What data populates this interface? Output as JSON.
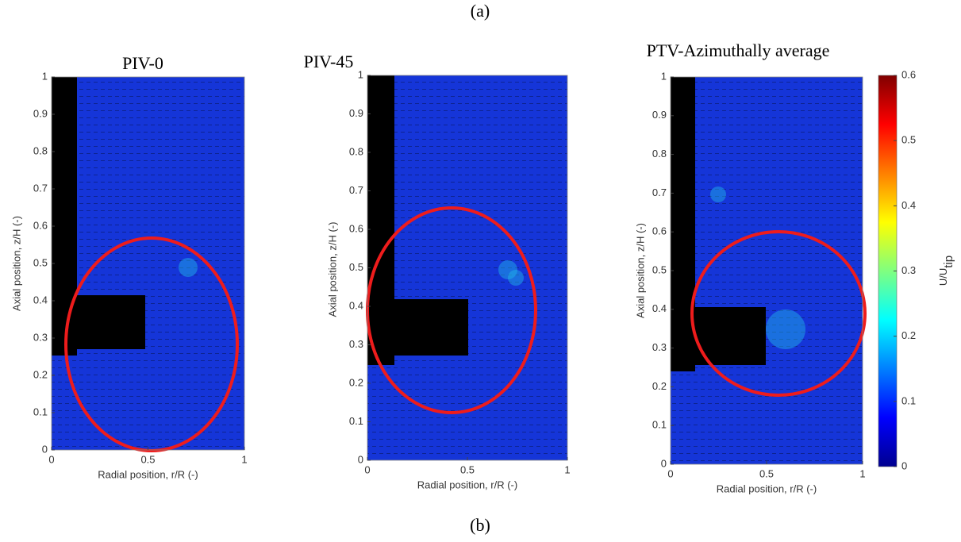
{
  "captions": {
    "top": "(a)",
    "bottom": "(b)"
  },
  "chart_data": [
    {
      "type": "vector-field",
      "title": "PIV-0",
      "x_label": "Radial position, r/R (-)",
      "y_label": "Axial position, z/H (-)",
      "xlim": [
        0,
        1
      ],
      "ylim": [
        0,
        1
      ],
      "xticks": [
        0,
        0.5,
        1
      ],
      "yticks": [
        0,
        0.1,
        0.2,
        0.3,
        0.4,
        0.5,
        0.6,
        0.7,
        0.8,
        0.9,
        1
      ]
    },
    {
      "type": "vector-field",
      "title": "PIV-45",
      "x_label": "Radial position, r/R (-)",
      "y_label": "Axial position, z/H (-)",
      "xlim": [
        0,
        1
      ],
      "ylim": [
        0,
        1
      ],
      "xticks": [
        0,
        0.5,
        1
      ],
      "yticks": [
        0,
        0.1,
        0.2,
        0.3,
        0.4,
        0.5,
        0.6,
        0.7,
        0.8,
        0.9,
        1
      ]
    },
    {
      "type": "vector-field",
      "title": "PTV-Azimuthally average",
      "x_label": "Radial position, r/R (-)",
      "y_label": "Axial position, z/H (-)",
      "xlim": [
        0,
        1
      ],
      "ylim": [
        0,
        1
      ],
      "xticks": [
        0,
        0.5,
        1
      ],
      "yticks": [
        0,
        0.1,
        0.2,
        0.3,
        0.4,
        0.5,
        0.6,
        0.7,
        0.8,
        0.9,
        1
      ],
      "colorbar": {
        "label": "U/U",
        "label_sub": "tip",
        "lim": [
          0,
          0.6
        ],
        "ticks": [
          0,
          0.1,
          0.2,
          0.3,
          0.4,
          0.5,
          0.6
        ]
      }
    }
  ]
}
